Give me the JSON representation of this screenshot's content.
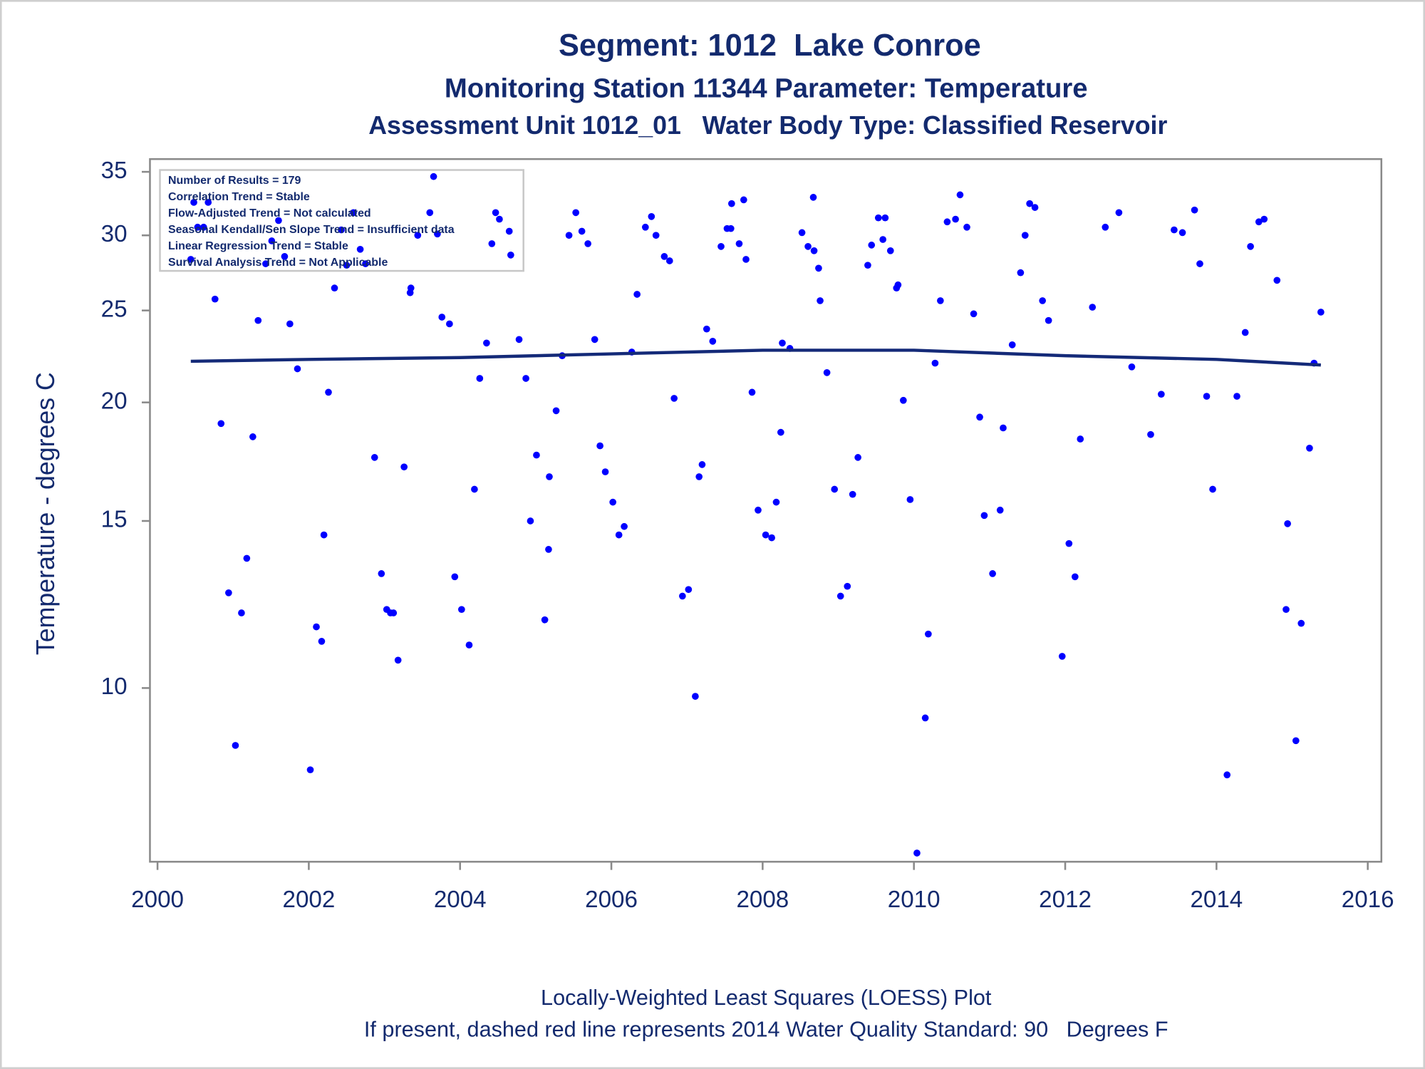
{
  "chart_data": {
    "type": "scatter",
    "title": "Segment: 1012  Lake Conroe",
    "subtitles": [
      "Monitoring Station 11344 Parameter: Temperature",
      "Assessment Unit 1012_01   Water Body Type: Classified Reservoir"
    ],
    "annotation_lines": [
      "Number of Results = 179",
      "Correlation Trend = Stable",
      "Flow-Adjusted Trend = Not calculated",
      "Seasonal Kendall/Sen Slope Trend = Insufficient data",
      "Linear Regression Trend = Stable",
      "Survival Analysis Trend = Not Applicable"
    ],
    "y_label": "Temperature - degrees C",
    "footnotes": [
      "Locally-Weighted Least Squares (LOESS) Plot",
      "If present, dashed red line represents 2014 Water Quality Standard: 90   Degrees F"
    ],
    "y_scale": "log",
    "grid": false,
    "xlim": [
      1999.9,
      2016.18
    ],
    "xticks": [
      2000,
      2002,
      2004,
      2006,
      2008,
      2010,
      2012,
      2014,
      2016
    ],
    "ylim": [
      6.56,
      36.1
    ],
    "yticks": [
      10,
      15,
      20,
      25,
      30,
      35
    ],
    "series": [
      {
        "type": "scatter",
        "color": "#0000ff",
        "x": [
          2000.44,
          2000.48,
          2000.53,
          2000.61,
          2000.67,
          2000.76,
          2000.84,
          2000.94,
          2001.03,
          2001.11,
          2001.18,
          2001.26,
          2001.33,
          2001.43,
          2001.51,
          2001.6,
          2001.68,
          2001.75,
          2001.85,
          2002.02,
          2002.1,
          2002.17,
          2002.2,
          2002.26,
          2002.34,
          2002.43,
          2002.5,
          2002.59,
          2002.68,
          2002.75,
          2002.87,
          2002.96,
          2003.03,
          2003.08,
          2003.12,
          2003.18,
          2003.26,
          2003.34,
          2003.35,
          2003.44,
          2003.6,
          2003.65,
          2003.7,
          2003.76,
          2003.86,
          2003.93,
          2004.02,
          2004.12,
          2004.19,
          2004.26,
          2004.35,
          2004.42,
          2004.47,
          2004.52,
          2004.65,
          2004.67,
          2004.78,
          2004.87,
          2004.93,
          2005.01,
          2005.12,
          2005.17,
          2005.18,
          2005.27,
          2005.35,
          2005.44,
          2005.53,
          2005.61,
          2005.69,
          2005.78,
          2005.85,
          2005.92,
          2006.02,
          2006.1,
          2006.17,
          2006.27,
          2006.34,
          2006.45,
          2006.53,
          2006.59,
          2006.7,
          2006.77,
          2006.83,
          2006.94,
          2007.02,
          2007.11,
          2007.16,
          2007.2,
          2007.26,
          2007.34,
          2007.45,
          2007.53,
          2007.58,
          2007.59,
          2007.69,
          2007.75,
          2007.78,
          2007.86,
          2007.94,
          2008.04,
          2008.12,
          2008.18,
          2008.24,
          2008.26,
          2008.36,
          2008.52,
          2008.6,
          2008.67,
          2008.68,
          2008.74,
          2008.76,
          2008.85,
          2008.95,
          2009.03,
          2009.12,
          2009.19,
          2009.26,
          2009.39,
          2009.44,
          2009.53,
          2009.59,
          2009.62,
          2009.69,
          2009.77,
          2009.79,
          2009.86,
          2009.95,
          2010.04,
          2010.15,
          2010.19,
          2010.28,
          2010.35,
          2010.44,
          2010.55,
          2010.61,
          2010.7,
          2010.79,
          2010.87,
          2010.93,
          2011.04,
          2011.14,
          2011.18,
          2011.3,
          2011.41,
          2011.47,
          2011.53,
          2011.6,
          2011.7,
          2011.78,
          2011.96,
          2012.05,
          2012.13,
          2012.2,
          2012.36,
          2012.53,
          2012.71,
          2012.88,
          2013.13,
          2013.27,
          2013.44,
          2013.55,
          2013.71,
          2013.78,
          2013.87,
          2013.95,
          2014.14,
          2014.27,
          2014.38,
          2014.45,
          2014.56,
          2014.63,
          2014.8,
          2014.92,
          2014.94,
          2015.05,
          2015.12,
          2015.23,
          2015.29,
          2015.38
        ],
        "values": [
          28.3,
          32.5,
          30.6,
          30.6,
          32.5,
          25.7,
          19.0,
          12.6,
          8.7,
          12.0,
          13.7,
          18.4,
          24.4,
          28.0,
          29.6,
          31.1,
          28.5,
          24.2,
          21.7,
          8.2,
          11.6,
          11.2,
          14.5,
          20.5,
          26.4,
          30.4,
          27.9,
          31.7,
          29.0,
          28.0,
          17.5,
          13.2,
          12.1,
          12.0,
          12.0,
          10.7,
          17.1,
          26.1,
          26.4,
          30.0,
          31.7,
          34.6,
          30.1,
          24.6,
          24.2,
          13.1,
          12.1,
          11.1,
          16.2,
          21.2,
          23.1,
          29.4,
          31.7,
          31.2,
          30.3,
          28.6,
          23.3,
          21.2,
          15.0,
          17.6,
          11.8,
          14.0,
          16.7,
          19.6,
          22.4,
          30.0,
          31.7,
          30.3,
          29.4,
          23.3,
          18.0,
          16.9,
          15.7,
          14.5,
          14.8,
          22.6,
          26.0,
          30.6,
          31.4,
          30.0,
          28.5,
          28.2,
          20.2,
          12.5,
          12.7,
          9.8,
          16.7,
          17.2,
          23.9,
          23.2,
          29.2,
          30.5,
          30.5,
          32.4,
          29.4,
          32.7,
          28.3,
          20.5,
          15.4,
          14.5,
          14.4,
          15.7,
          18.6,
          23.1,
          22.8,
          30.2,
          29.2,
          32.9,
          28.9,
          27.7,
          25.6,
          21.5,
          16.2,
          12.5,
          12.8,
          16.0,
          17.5,
          27.9,
          29.3,
          31.3,
          29.7,
          31.3,
          28.9,
          26.4,
          26.6,
          20.1,
          15.8,
          6.7,
          9.3,
          11.4,
          22.0,
          25.6,
          31.0,
          31.2,
          33.1,
          30.6,
          24.8,
          19.3,
          15.2,
          13.2,
          15.4,
          18.8,
          23.0,
          27.4,
          30.0,
          32.4,
          32.1,
          25.6,
          24.4,
          10.8,
          14.2,
          13.1,
          18.3,
          25.2,
          30.6,
          31.7,
          21.8,
          18.5,
          20.4,
          30.4,
          30.2,
          31.9,
          28.0,
          20.3,
          16.2,
          8.1,
          20.3,
          23.7,
          29.2,
          31.0,
          31.2,
          26.9,
          12.1,
          14.9,
          8.8,
          11.7,
          17.9,
          22.0,
          24.9
        ]
      },
      {
        "type": "line",
        "color": "#142a78",
        "x": [
          2000.44,
          2002,
          2004,
          2006,
          2008,
          2009,
          2010,
          2012,
          2014,
          2015.38
        ],
        "values": [
          22.1,
          22.2,
          22.3,
          22.5,
          22.7,
          22.7,
          22.7,
          22.4,
          22.2,
          21.9
        ]
      }
    ]
  }
}
